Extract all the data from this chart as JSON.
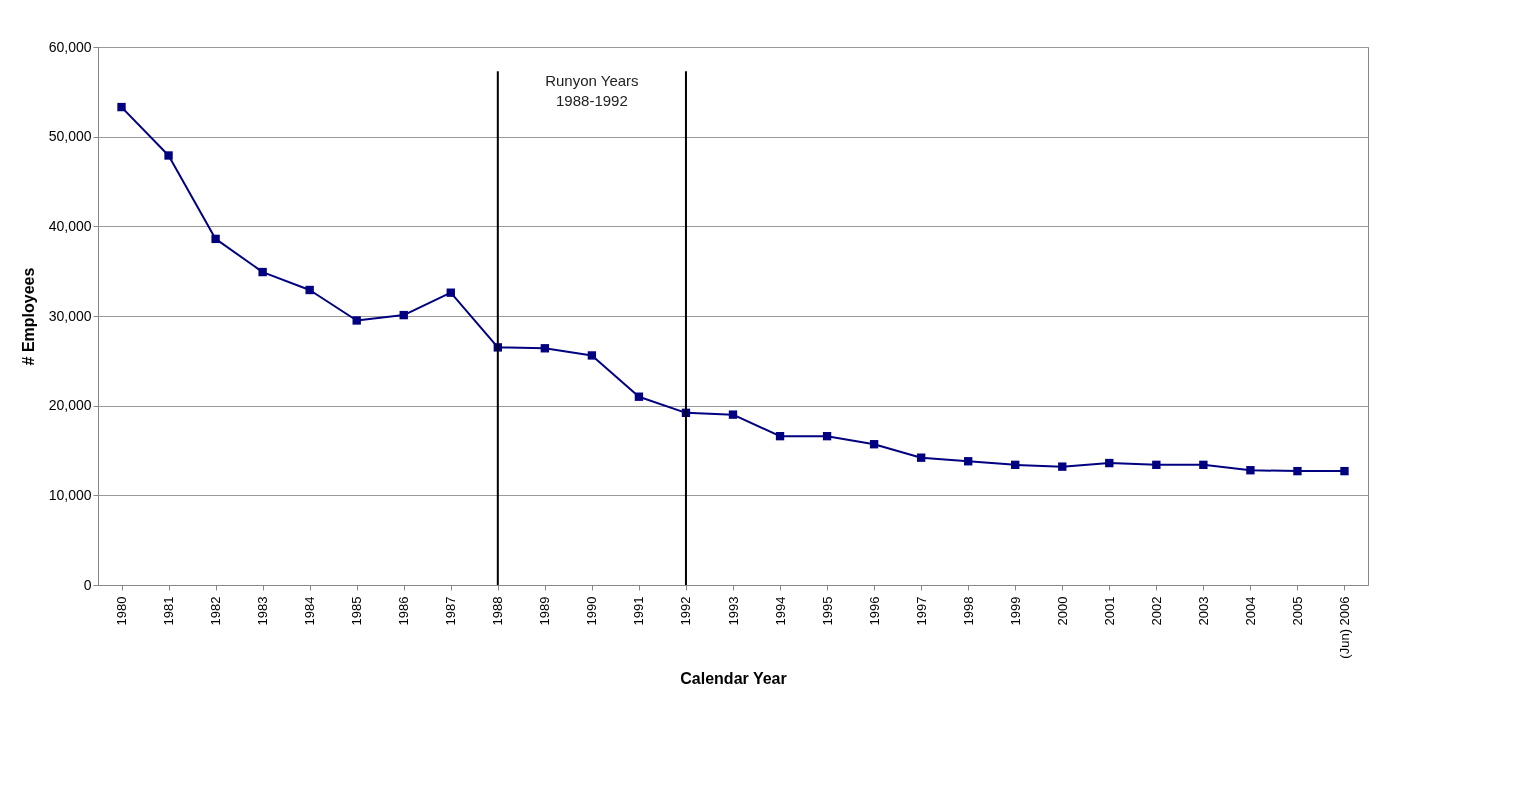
{
  "chart_data": {
    "type": "line",
    "xlabel": "Calendar Year",
    "ylabel": "# Employees",
    "categories": [
      "1980",
      "1981",
      "1982",
      "1983",
      "1984",
      "1985",
      "1986",
      "1987",
      "1988",
      "1989",
      "1990",
      "1991",
      "1992",
      "1993",
      "1994",
      "1995",
      "1996",
      "1997",
      "1998",
      "1999",
      "2000",
      "2001",
      "2002",
      "2003",
      "2004",
      "2005",
      "(Jun) 2006"
    ],
    "series": [
      {
        "color": "#000080",
        "values": [
          53300,
          47900,
          38600,
          34900,
          32900,
          29500,
          30100,
          32600,
          26500,
          26400,
          25600,
          21000,
          19200,
          19000,
          16600,
          16600,
          15700,
          14200,
          13800,
          13400,
          13200,
          13600,
          13400,
          13400,
          12800,
          12700,
          12700
        ]
      }
    ],
    "ylim": [
      0,
      60000
    ],
    "yticks": [
      0,
      {
        "value": 10000,
        "label": "10,000"
      },
      {
        "value": 20000,
        "label": "20,000"
      },
      {
        "value": 30000,
        "label": "30,000"
      },
      {
        "value": 40000,
        "label": "40,000"
      },
      {
        "value": 50000,
        "label": "50,000"
      },
      {
        "value": 60000,
        "label": "60,000"
      }
    ],
    "ref_lines": [
      {
        "axis": "x",
        "value": "1988",
        "color": "#000000"
      },
      {
        "axis": "x",
        "value": "1992",
        "color": "#000000"
      }
    ],
    "annotations": [
      "Runyon Years 1988-1992"
    ],
    "grid": "y",
    "marker": "square",
    "line_style": "solid"
  }
}
